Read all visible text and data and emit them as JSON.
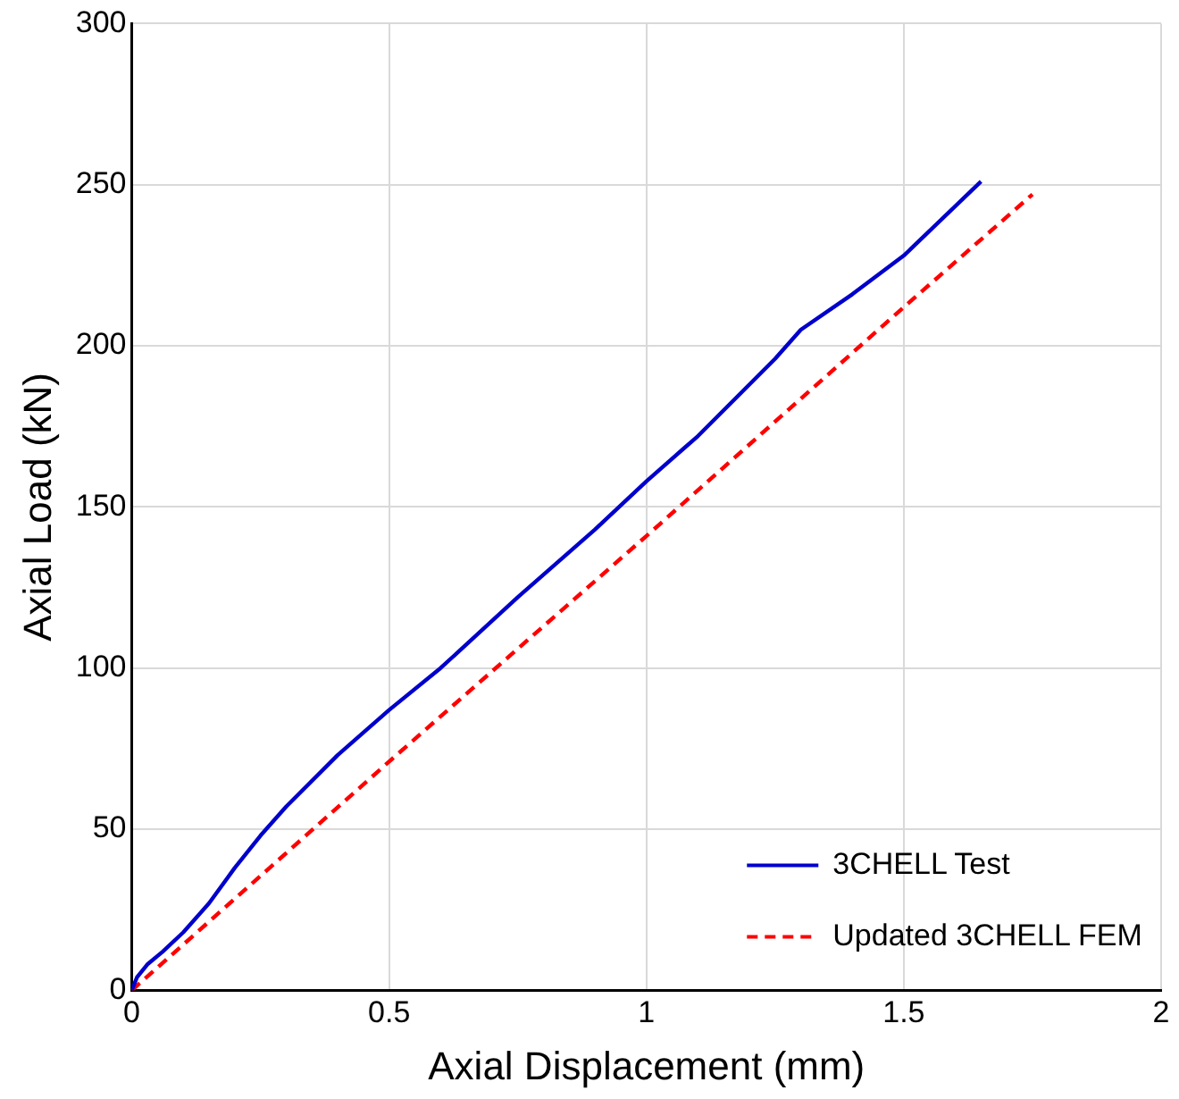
{
  "chart_data": {
    "type": "line",
    "xlabel": "Axial Displacement (mm)",
    "ylabel": "Axial Load (kN)",
    "xlim": [
      0,
      2
    ],
    "xticks": [
      0,
      0.5,
      1,
      1.5,
      2
    ],
    "ylim": [
      0,
      300
    ],
    "yticks": [
      0,
      50,
      100,
      150,
      200,
      250,
      300
    ],
    "grid": true,
    "legend": "bottom right",
    "marker": "none",
    "series": [
      {
        "name": "3CHELL Test",
        "color": "#0000cc",
        "line_style": "solid",
        "x": [
          0,
          0.01,
          0.03,
          0.06,
          0.1,
          0.15,
          0.2,
          0.25,
          0.3,
          0.4,
          0.5,
          0.6,
          0.75,
          0.9,
          1.0,
          1.1,
          1.25,
          1.3,
          1.4,
          1.5,
          1.65
        ],
        "values": [
          0,
          4,
          8,
          12,
          18,
          27,
          38,
          48,
          57,
          73,
          87,
          100,
          122,
          143,
          158,
          172,
          196,
          205,
          216,
          228,
          251
        ]
      },
      {
        "name": "Updated 3CHELL FEM",
        "color": "#ff0000",
        "line_style": "dashed",
        "x": [
          0,
          0.5,
          1,
          1.5,
          1.75
        ],
        "values": [
          0,
          71,
          141,
          212,
          247
        ]
      }
    ]
  }
}
